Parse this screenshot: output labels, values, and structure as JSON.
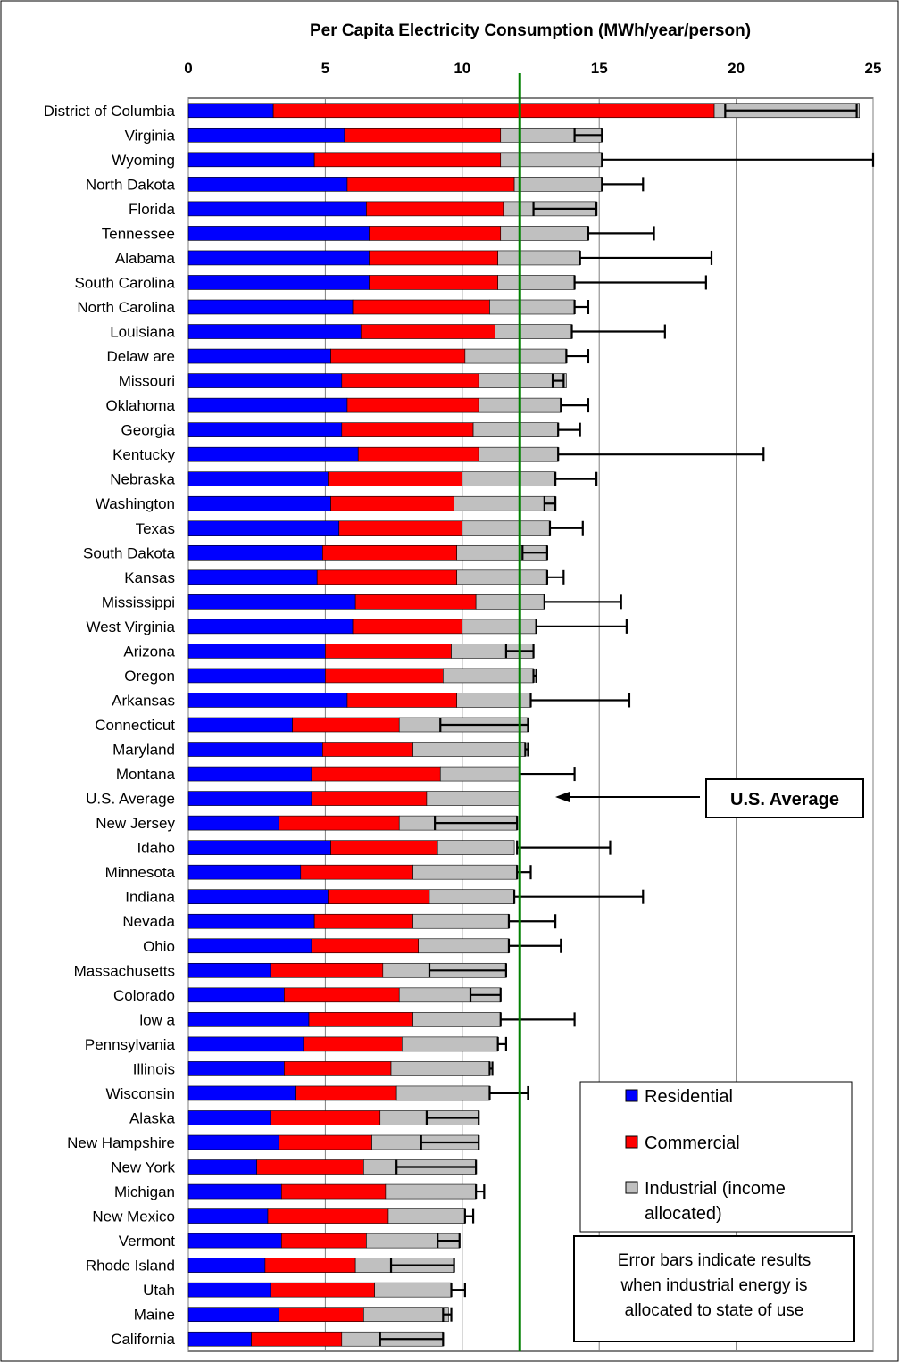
{
  "chart_data": {
    "type": "bar",
    "orientation": "horizontal",
    "stacked": true,
    "title": "Per Capita Electricity Consumption (MWh/year/person)",
    "xlim": [
      0,
      25
    ],
    "xticks": [
      "0",
      "5",
      "10",
      "15",
      "20",
      "25"
    ],
    "grid": "vertical",
    "categories": [
      "District of Columbia",
      "Virginia",
      "Wyoming",
      "North Dakota",
      "Florida",
      "Tennessee",
      "Alabama",
      "South Carolina",
      "North Carolina",
      "Louisiana",
      "Delaw are",
      "Missouri",
      "Oklahoma",
      "Georgia",
      "Kentucky",
      "Nebraska",
      "Washington",
      "Texas",
      "South Dakota",
      "Kansas",
      "Mississippi",
      "West Virginia",
      "Arizona",
      "Oregon",
      "Arkansas",
      "Connecticut",
      "Maryland",
      "Montana",
      "U.S. Average",
      "New Jersey",
      "Idaho",
      "Minnesota",
      "Indiana",
      "Nevada",
      "Ohio",
      "Massachusetts",
      "Colorado",
      "low a",
      "Pennsylvania",
      "Illinois",
      "Wisconsin",
      "Alaska",
      "New Hampshire",
      "New York",
      "Michigan",
      "New Mexico",
      "Vermont",
      "Rhode Island",
      "Utah",
      "Maine",
      "California"
    ],
    "series": [
      {
        "name": "Residential",
        "color": "#0000ff",
        "values": [
          3.1,
          5.7,
          4.6,
          5.8,
          6.5,
          6.6,
          6.6,
          6.6,
          6.0,
          6.3,
          5.2,
          5.6,
          5.8,
          5.6,
          6.2,
          5.1,
          5.2,
          5.5,
          4.9,
          4.7,
          6.1,
          6.0,
          5.0,
          5.0,
          5.8,
          3.8,
          4.9,
          4.5,
          4.5,
          3.3,
          5.2,
          4.1,
          5.1,
          4.6,
          4.5,
          3.0,
          3.5,
          4.4,
          4.2,
          3.5,
          3.9,
          3.0,
          3.3,
          2.5,
          3.4,
          2.9,
          3.4,
          2.8,
          3.0,
          3.3,
          2.3
        ]
      },
      {
        "name": "Commercial",
        "color": "#ff0000",
        "values": [
          16.1,
          5.7,
          6.8,
          6.1,
          5.0,
          4.8,
          4.7,
          4.7,
          5.0,
          4.9,
          4.9,
          5.0,
          4.8,
          4.8,
          4.4,
          4.9,
          4.5,
          4.5,
          4.9,
          5.1,
          4.4,
          4.0,
          4.6,
          4.3,
          4.0,
          3.9,
          3.3,
          4.7,
          4.2,
          4.4,
          3.9,
          4.1,
          3.7,
          3.6,
          3.9,
          4.1,
          4.2,
          3.8,
          3.6,
          3.9,
          3.7,
          4.0,
          3.4,
          3.9,
          3.8,
          4.4,
          3.1,
          3.3,
          3.8,
          3.1,
          3.3
        ]
      },
      {
        "name": "Industrial (income allocated)",
        "color": "#c0c0c0",
        "values": [
          5.3,
          3.7,
          3.7,
          3.2,
          3.4,
          3.2,
          3.0,
          2.8,
          3.1,
          2.8,
          3.7,
          3.2,
          3.0,
          3.1,
          2.9,
          3.4,
          3.7,
          3.2,
          3.3,
          3.3,
          2.5,
          2.7,
          3.0,
          3.3,
          2.7,
          4.7,
          4.1,
          2.9,
          3.4,
          4.3,
          2.8,
          3.8,
          3.1,
          3.5,
          3.3,
          4.5,
          3.7,
          3.2,
          3.5,
          3.6,
          3.4,
          3.6,
          3.9,
          4.1,
          3.3,
          2.8,
          3.4,
          3.6,
          2.8,
          3.1,
          3.7
        ]
      }
    ],
    "error_bars": [
      {
        "low": 19.6,
        "high": 24.4
      },
      {
        "low": 14.1,
        "high": 15.1
      },
      {
        "low": 15.1,
        "high": 25.0
      },
      {
        "low": 15.1,
        "high": 16.6
      },
      {
        "low": 12.6,
        "high": 14.9
      },
      {
        "low": 14.6,
        "high": 17.0
      },
      {
        "low": 14.3,
        "high": 19.1
      },
      {
        "low": 14.1,
        "high": 18.9
      },
      {
        "low": 14.1,
        "high": 14.6
      },
      {
        "low": 14.0,
        "high": 17.4
      },
      {
        "low": 13.8,
        "high": 14.6
      },
      {
        "low": 13.3,
        "high": 13.7
      },
      {
        "low": 13.6,
        "high": 14.6
      },
      {
        "low": 13.5,
        "high": 14.3
      },
      {
        "low": 13.5,
        "high": 21.0
      },
      {
        "low": 13.4,
        "high": 14.9
      },
      {
        "low": 13.0,
        "high": 13.4
      },
      {
        "low": 13.2,
        "high": 14.4
      },
      {
        "low": 12.2,
        "high": 13.1
      },
      {
        "low": 13.1,
        "high": 13.7
      },
      {
        "low": 13.0,
        "high": 15.8
      },
      {
        "low": 12.7,
        "high": 16.0
      },
      {
        "low": 11.6,
        "high": 12.6
      },
      {
        "low": 12.6,
        "high": 12.7
      },
      {
        "low": 12.5,
        "high": 16.1
      },
      {
        "low": 9.2,
        "high": 12.4
      },
      {
        "low": 12.3,
        "high": 12.4
      },
      {
        "low": 12.1,
        "high": 14.1
      },
      {
        "low": 12.1,
        "high": 12.1
      },
      {
        "low": 9.0,
        "high": 12.0
      },
      {
        "low": 12.0,
        "high": 15.4
      },
      {
        "low": 12.0,
        "high": 12.5
      },
      {
        "low": 11.9,
        "high": 16.6
      },
      {
        "low": 11.7,
        "high": 13.4
      },
      {
        "low": 11.7,
        "high": 13.6
      },
      {
        "low": 8.8,
        "high": 11.6
      },
      {
        "low": 10.3,
        "high": 11.4
      },
      {
        "low": 11.4,
        "high": 14.1
      },
      {
        "low": 11.3,
        "high": 11.6
      },
      {
        "low": 11.0,
        "high": 11.1
      },
      {
        "low": 11.0,
        "high": 12.4
      },
      {
        "low": 8.7,
        "high": 10.6
      },
      {
        "low": 8.5,
        "high": 10.6
      },
      {
        "low": 7.6,
        "high": 10.5
      },
      {
        "low": 10.5,
        "high": 10.8
      },
      {
        "low": 10.1,
        "high": 10.4
      },
      {
        "low": 9.1,
        "high": 9.9
      },
      {
        "low": 7.4,
        "high": 9.7
      },
      {
        "low": 9.6,
        "high": 10.1
      },
      {
        "low": 9.3,
        "high": 9.6
      },
      {
        "low": 7.0,
        "high": 9.3
      }
    ],
    "reference_line": {
      "value": 12.1,
      "color": "#008000",
      "label": "U.S. Average"
    },
    "legend": {
      "placement": "bottom-right",
      "entries": [
        {
          "label": "Residential",
          "color": "#0000ff"
        },
        {
          "label": "Commercial",
          "color": "#ff0000"
        },
        {
          "label_lines": [
            "Industrial (income",
            "allocated)"
          ],
          "color": "#c0c0c0"
        }
      ]
    },
    "annotations": [
      {
        "lines": [
          "Error bars indicate results",
          "when industrial energy is",
          "allocated to state of use"
        ]
      },
      {
        "text": "U.S. Average"
      }
    ]
  }
}
